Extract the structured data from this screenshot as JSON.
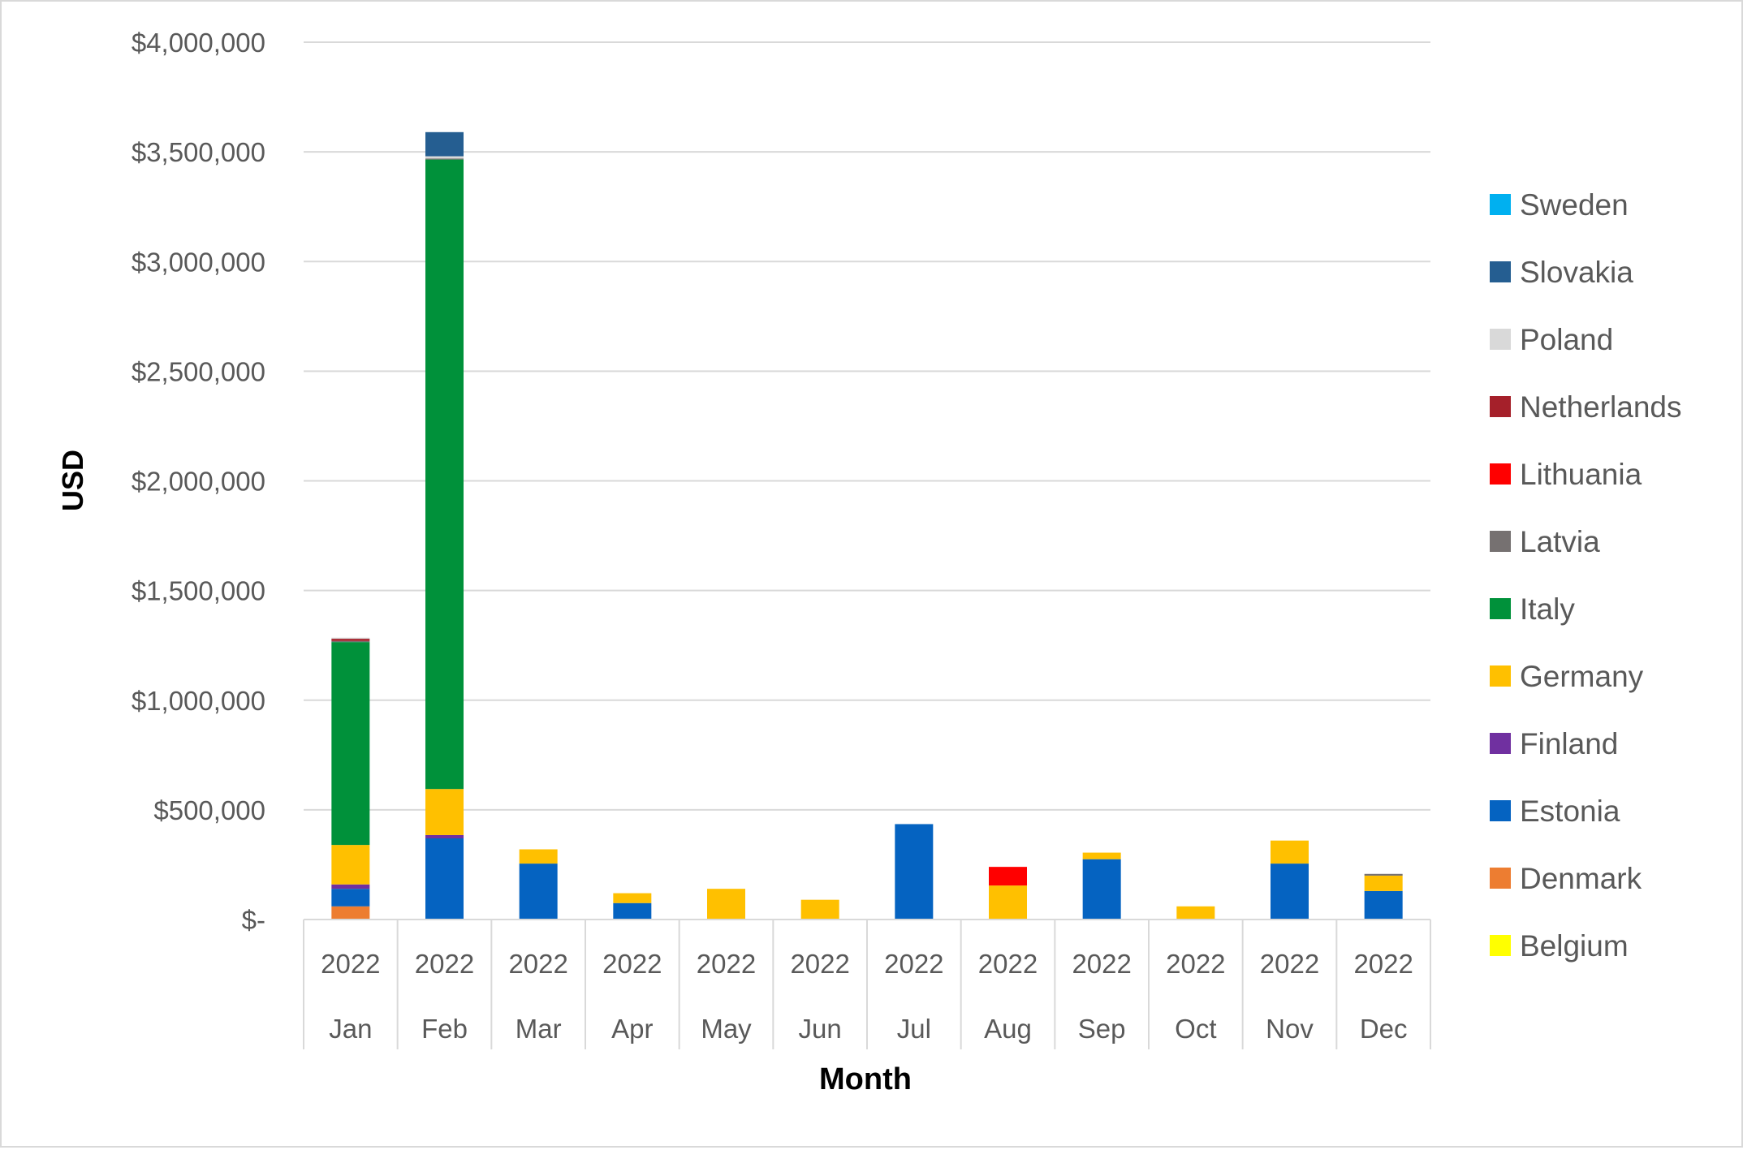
{
  "chart_data": {
    "type": "bar",
    "stacked": true,
    "title": "",
    "xlabel": "Month",
    "ylabel": "USD",
    "ylim": [
      0,
      4000000
    ],
    "yticks": [
      {
        "value": 0,
        "label": "$-"
      },
      {
        "value": 500000,
        "label": "$500,000"
      },
      {
        "value": 1000000,
        "label": "$1,000,000"
      },
      {
        "value": 1500000,
        "label": "$1,500,000"
      },
      {
        "value": 2000000,
        "label": "$2,000,000"
      },
      {
        "value": 2500000,
        "label": "$2,500,000"
      },
      {
        "value": 3000000,
        "label": "$3,000,000"
      },
      {
        "value": 3500000,
        "label": "$3,500,000"
      },
      {
        "value": 4000000,
        "label": "$4,000,000"
      }
    ],
    "categories": [
      {
        "year": "2022",
        "month": "Jan"
      },
      {
        "year": "2022",
        "month": "Feb"
      },
      {
        "year": "2022",
        "month": "Mar"
      },
      {
        "year": "2022",
        "month": "Apr"
      },
      {
        "year": "2022",
        "month": "May"
      },
      {
        "year": "2022",
        "month": "Jun"
      },
      {
        "year": "2022",
        "month": "Jul"
      },
      {
        "year": "2022",
        "month": "Aug"
      },
      {
        "year": "2022",
        "month": "Sep"
      },
      {
        "year": "2022",
        "month": "Oct"
      },
      {
        "year": "2022",
        "month": "Nov"
      },
      {
        "year": "2022",
        "month": "Dec"
      }
    ],
    "series": [
      {
        "name": "Belgium",
        "color": "#ffff00",
        "values": [
          0,
          0,
          0,
          0,
          0,
          0,
          0,
          0,
          0,
          0,
          0,
          0
        ]
      },
      {
        "name": "Denmark",
        "color": "#ed7d31",
        "values": [
          60000,
          0,
          0,
          0,
          0,
          0,
          0,
          0,
          0,
          0,
          0,
          0
        ]
      },
      {
        "name": "Estonia",
        "color": "#0563c1",
        "values": [
          80000,
          370000,
          255000,
          75000,
          0,
          0,
          435000,
          0,
          275000,
          0,
          255000,
          130000
        ]
      },
      {
        "name": "Finland",
        "color": "#7030a0",
        "values": [
          20000,
          15000,
          0,
          0,
          0,
          0,
          0,
          0,
          0,
          0,
          0,
          0
        ]
      },
      {
        "name": "Germany",
        "color": "#ffc000",
        "values": [
          180000,
          210000,
          65000,
          45000,
          140000,
          90000,
          0,
          155000,
          30000,
          60000,
          105000,
          70000
        ]
      },
      {
        "name": "Italy",
        "color": "#00913a",
        "values": [
          925000,
          2870000,
          0,
          0,
          0,
          0,
          0,
          0,
          0,
          0,
          0,
          0
        ]
      },
      {
        "name": "Latvia",
        "color": "#767171",
        "values": [
          5000,
          5000,
          0,
          0,
          0,
          0,
          0,
          0,
          0,
          0,
          0,
          8000
        ]
      },
      {
        "name": "Lithuania",
        "color": "#ff0000",
        "values": [
          0,
          0,
          0,
          0,
          0,
          0,
          0,
          85000,
          0,
          0,
          0,
          0
        ]
      },
      {
        "name": "Netherlands",
        "color": "#a5202a",
        "values": [
          10000,
          0,
          0,
          0,
          0,
          0,
          0,
          0,
          0,
          0,
          0,
          0
        ]
      },
      {
        "name": "Poland",
        "color": "#d9d9d9",
        "values": [
          5000,
          10000,
          0,
          0,
          0,
          0,
          0,
          0,
          0,
          0,
          0,
          0
        ]
      },
      {
        "name": "Slovakia",
        "color": "#255e91",
        "values": [
          0,
          110000,
          0,
          0,
          0,
          0,
          0,
          0,
          0,
          0,
          0,
          0
        ]
      },
      {
        "name": "Sweden",
        "color": "#00b0f0",
        "values": [
          0,
          0,
          0,
          0,
          0,
          0,
          0,
          0,
          0,
          0,
          0,
          0
        ]
      }
    ],
    "legend_position": "right",
    "legend_order": [
      "Sweden",
      "Slovakia",
      "Poland",
      "Netherlands",
      "Lithuania",
      "Latvia",
      "Italy",
      "Germany",
      "Finland",
      "Estonia",
      "Denmark",
      "Belgium"
    ],
    "grid": true,
    "colors": {
      "grid": "#d9d9d9",
      "axis_text": "#595959",
      "title_text": "#000000"
    }
  }
}
